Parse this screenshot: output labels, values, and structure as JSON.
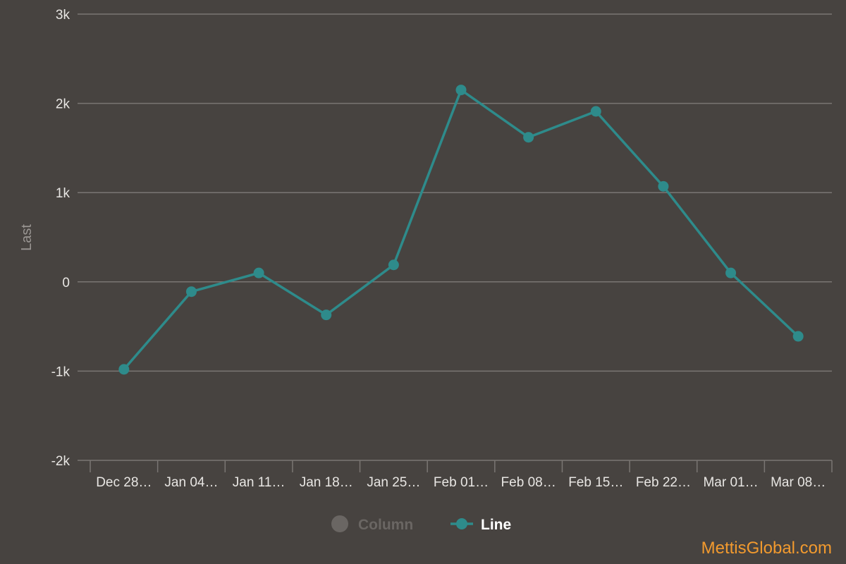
{
  "chart_data": {
    "type": "line",
    "ylabel": "Last",
    "ylim": [
      -2000,
      3000
    ],
    "yticks": [
      -2000,
      -1000,
      0,
      1000,
      2000,
      3000
    ],
    "ytick_labels": [
      "-2k",
      "-1k",
      "0",
      "1k",
      "2k",
      "3k"
    ],
    "categories": [
      "Dec 28…",
      "Jan 04…",
      "Jan 11…",
      "Jan 18…",
      "Jan 25…",
      "Feb 01…",
      "Feb 08…",
      "Feb 15…",
      "Feb 22…",
      "Mar 01…",
      "Mar 08…"
    ],
    "series": [
      {
        "name": "Line",
        "values": [
          -980,
          -110,
          100,
          -370,
          190,
          2150,
          1620,
          1910,
          1070,
          100,
          -610
        ]
      }
    ],
    "legend": [
      {
        "label": "Column",
        "enabled": false,
        "marker": "circle"
      },
      {
        "label": "Line",
        "enabled": true,
        "marker": "line-circle"
      }
    ],
    "legend_position": "bottom-center",
    "grid": true,
    "colors": {
      "background": "#474340",
      "line": "#2e8b8b",
      "grid": "#7a7673",
      "legend_disabled": "#6a6663",
      "watermark": "#f29a2e"
    }
  },
  "watermark": "MettisGlobal.com"
}
